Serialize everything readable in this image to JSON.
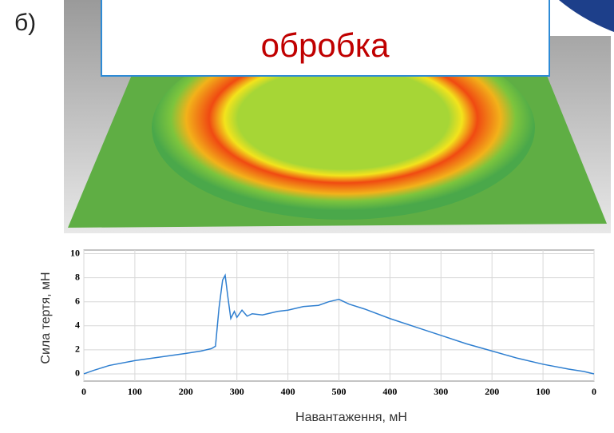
{
  "label": "б)",
  "callout": "обробка",
  "chart_data": {
    "type": "line",
    "x_label": "Навантаження, мН",
    "y_label": "Сила тертя, мН",
    "series": [
      {
        "color": "#2f7fd0",
        "x": [
          0,
          20,
          50,
          100,
          150,
          200,
          230,
          250,
          258,
          265,
          272,
          277,
          282,
          288,
          295,
          300,
          310,
          320,
          330,
          350,
          380,
          400,
          430,
          460,
          480,
          500,
          520,
          550,
          600,
          650,
          700,
          750,
          800,
          850,
          900,
          950,
          980,
          1000
        ],
        "values": [
          0,
          0.3,
          0.7,
          1.1,
          1.4,
          1.7,
          1.9,
          2.1,
          2.3,
          5.5,
          7.8,
          8.2,
          6.5,
          4.6,
          5.2,
          4.7,
          5.3,
          4.8,
          5.0,
          4.9,
          5.2,
          5.3,
          5.6,
          5.7,
          6.0,
          6.2,
          5.8,
          5.4,
          4.6,
          3.9,
          3.2,
          2.5,
          1.9,
          1.3,
          0.8,
          0.4,
          0.2,
          0.0
        ]
      }
    ],
    "xlim": [
      0,
      1000
    ],
    "xticks": [
      0,
      100,
      200,
      300,
      400,
      500,
      {
        "value": 600,
        "label": "400"
      },
      {
        "value": 700,
        "label": "300"
      },
      {
        "value": 800,
        "label": "200"
      },
      {
        "value": 900,
        "label": "100"
      },
      {
        "value": 1000,
        "label": "0"
      }
    ],
    "ylim": [
      -0.6,
      10.3
    ],
    "yticks": [
      0,
      2,
      4,
      6,
      8,
      10
    ],
    "grid": true
  }
}
